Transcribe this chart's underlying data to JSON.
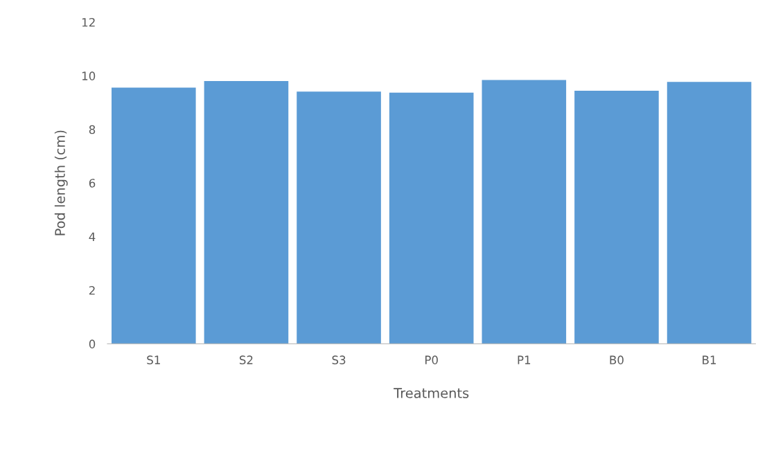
{
  "chart_data": {
    "type": "bar",
    "xlabel": "Treatments",
    "ylabel": "Pod length (cm)",
    "categories": [
      "S1",
      "S2",
      "S3",
      "P0",
      "P1",
      "B0",
      "B1"
    ],
    "values": [
      9.56,
      9.8,
      9.41,
      9.37,
      9.84,
      9.44,
      9.77
    ],
    "color": "#5b9bd5",
    "ylim": [
      0,
      12
    ],
    "yticks": [
      0,
      2,
      4,
      6,
      8,
      10,
      12
    ],
    "grid": false,
    "legend": false
  }
}
